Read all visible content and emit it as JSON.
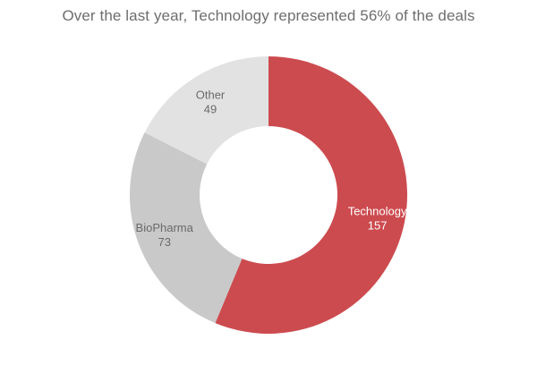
{
  "chart_data": {
    "type": "pie",
    "variant": "donut",
    "title": "Over the last year, Technology represented 56% of the deals",
    "slices": [
      {
        "name": "Technology",
        "value": 157,
        "color": "#cc4b4f",
        "label_color": "#ffffff"
      },
      {
        "name": "BioPharma",
        "value": 73,
        "color": "#c9c9c9",
        "label_color": "#6a6a6a"
      },
      {
        "name": "Other",
        "value": 49,
        "color": "#e2e2e2",
        "label_color": "#6a6a6a"
      }
    ]
  }
}
